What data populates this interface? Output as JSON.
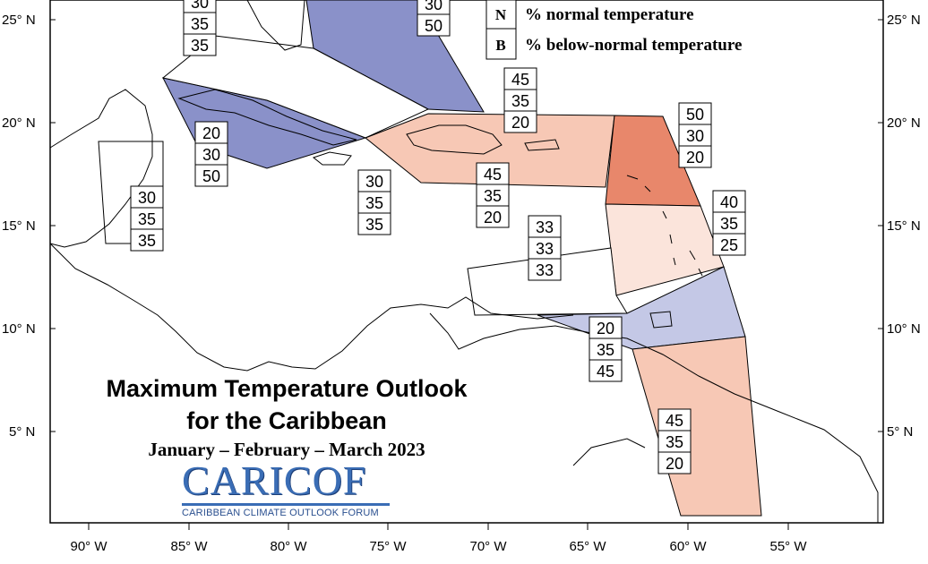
{
  "title": {
    "line1": "Maximum Temperature Outlook",
    "line2": "for the Caribbean",
    "period": "January – February – March 2023"
  },
  "logo": {
    "name": "CARICOF",
    "tagline": "CARIBBEAN CLIMATE OUTLOOK FORUM"
  },
  "legend": [
    {
      "key": "N",
      "text": "% normal temperature"
    },
    {
      "key": "B",
      "text": "% below-normal temperature"
    }
  ],
  "axes": {
    "lon_labels": [
      "90° W",
      "85° W",
      "80° W",
      "75° W",
      "70° W",
      "65° W",
      "60° W",
      "55° W"
    ],
    "lat_labels": [
      "25° N",
      "20° N",
      "15° N",
      "10° N",
      "5° N"
    ]
  },
  "colors": {
    "below_strong": "#8a91c9",
    "below_light": "#c4c8e6",
    "above_light": "#f7c8b5",
    "above_pale": "#fbe4db",
    "above_strong": "#e8876b"
  },
  "regions": [
    {
      "name": "bahamas-box-partial",
      "values": [
        "30",
        "50"
      ]
    },
    {
      "name": "northwest-box",
      "values": [
        "30",
        "35",
        "35"
      ]
    },
    {
      "name": "cuba",
      "values": [
        "20",
        "30",
        "50"
      ]
    },
    {
      "name": "belize-box",
      "values": [
        "30",
        "35",
        "35"
      ]
    },
    {
      "name": "jamaica",
      "values": [
        "30",
        "35",
        "35"
      ]
    },
    {
      "name": "hispaniola-upper",
      "values": [
        "45",
        "35",
        "20"
      ]
    },
    {
      "name": "hispaniola-lower",
      "values": [
        "45",
        "35",
        "20"
      ]
    },
    {
      "name": "leeward-islands",
      "values": [
        "50",
        "30",
        "20"
      ]
    },
    {
      "name": "windward-islands",
      "values": [
        "40",
        "35",
        "25"
      ]
    },
    {
      "name": "abc-islands",
      "values": [
        "33",
        "33",
        "33"
      ]
    },
    {
      "name": "trinidad-tobago",
      "values": [
        "20",
        "35",
        "45"
      ]
    },
    {
      "name": "guianas",
      "values": [
        "45",
        "35",
        "20"
      ]
    },
    {
      "name": "top-left-partial",
      "values": [
        "30"
      ]
    }
  ]
}
